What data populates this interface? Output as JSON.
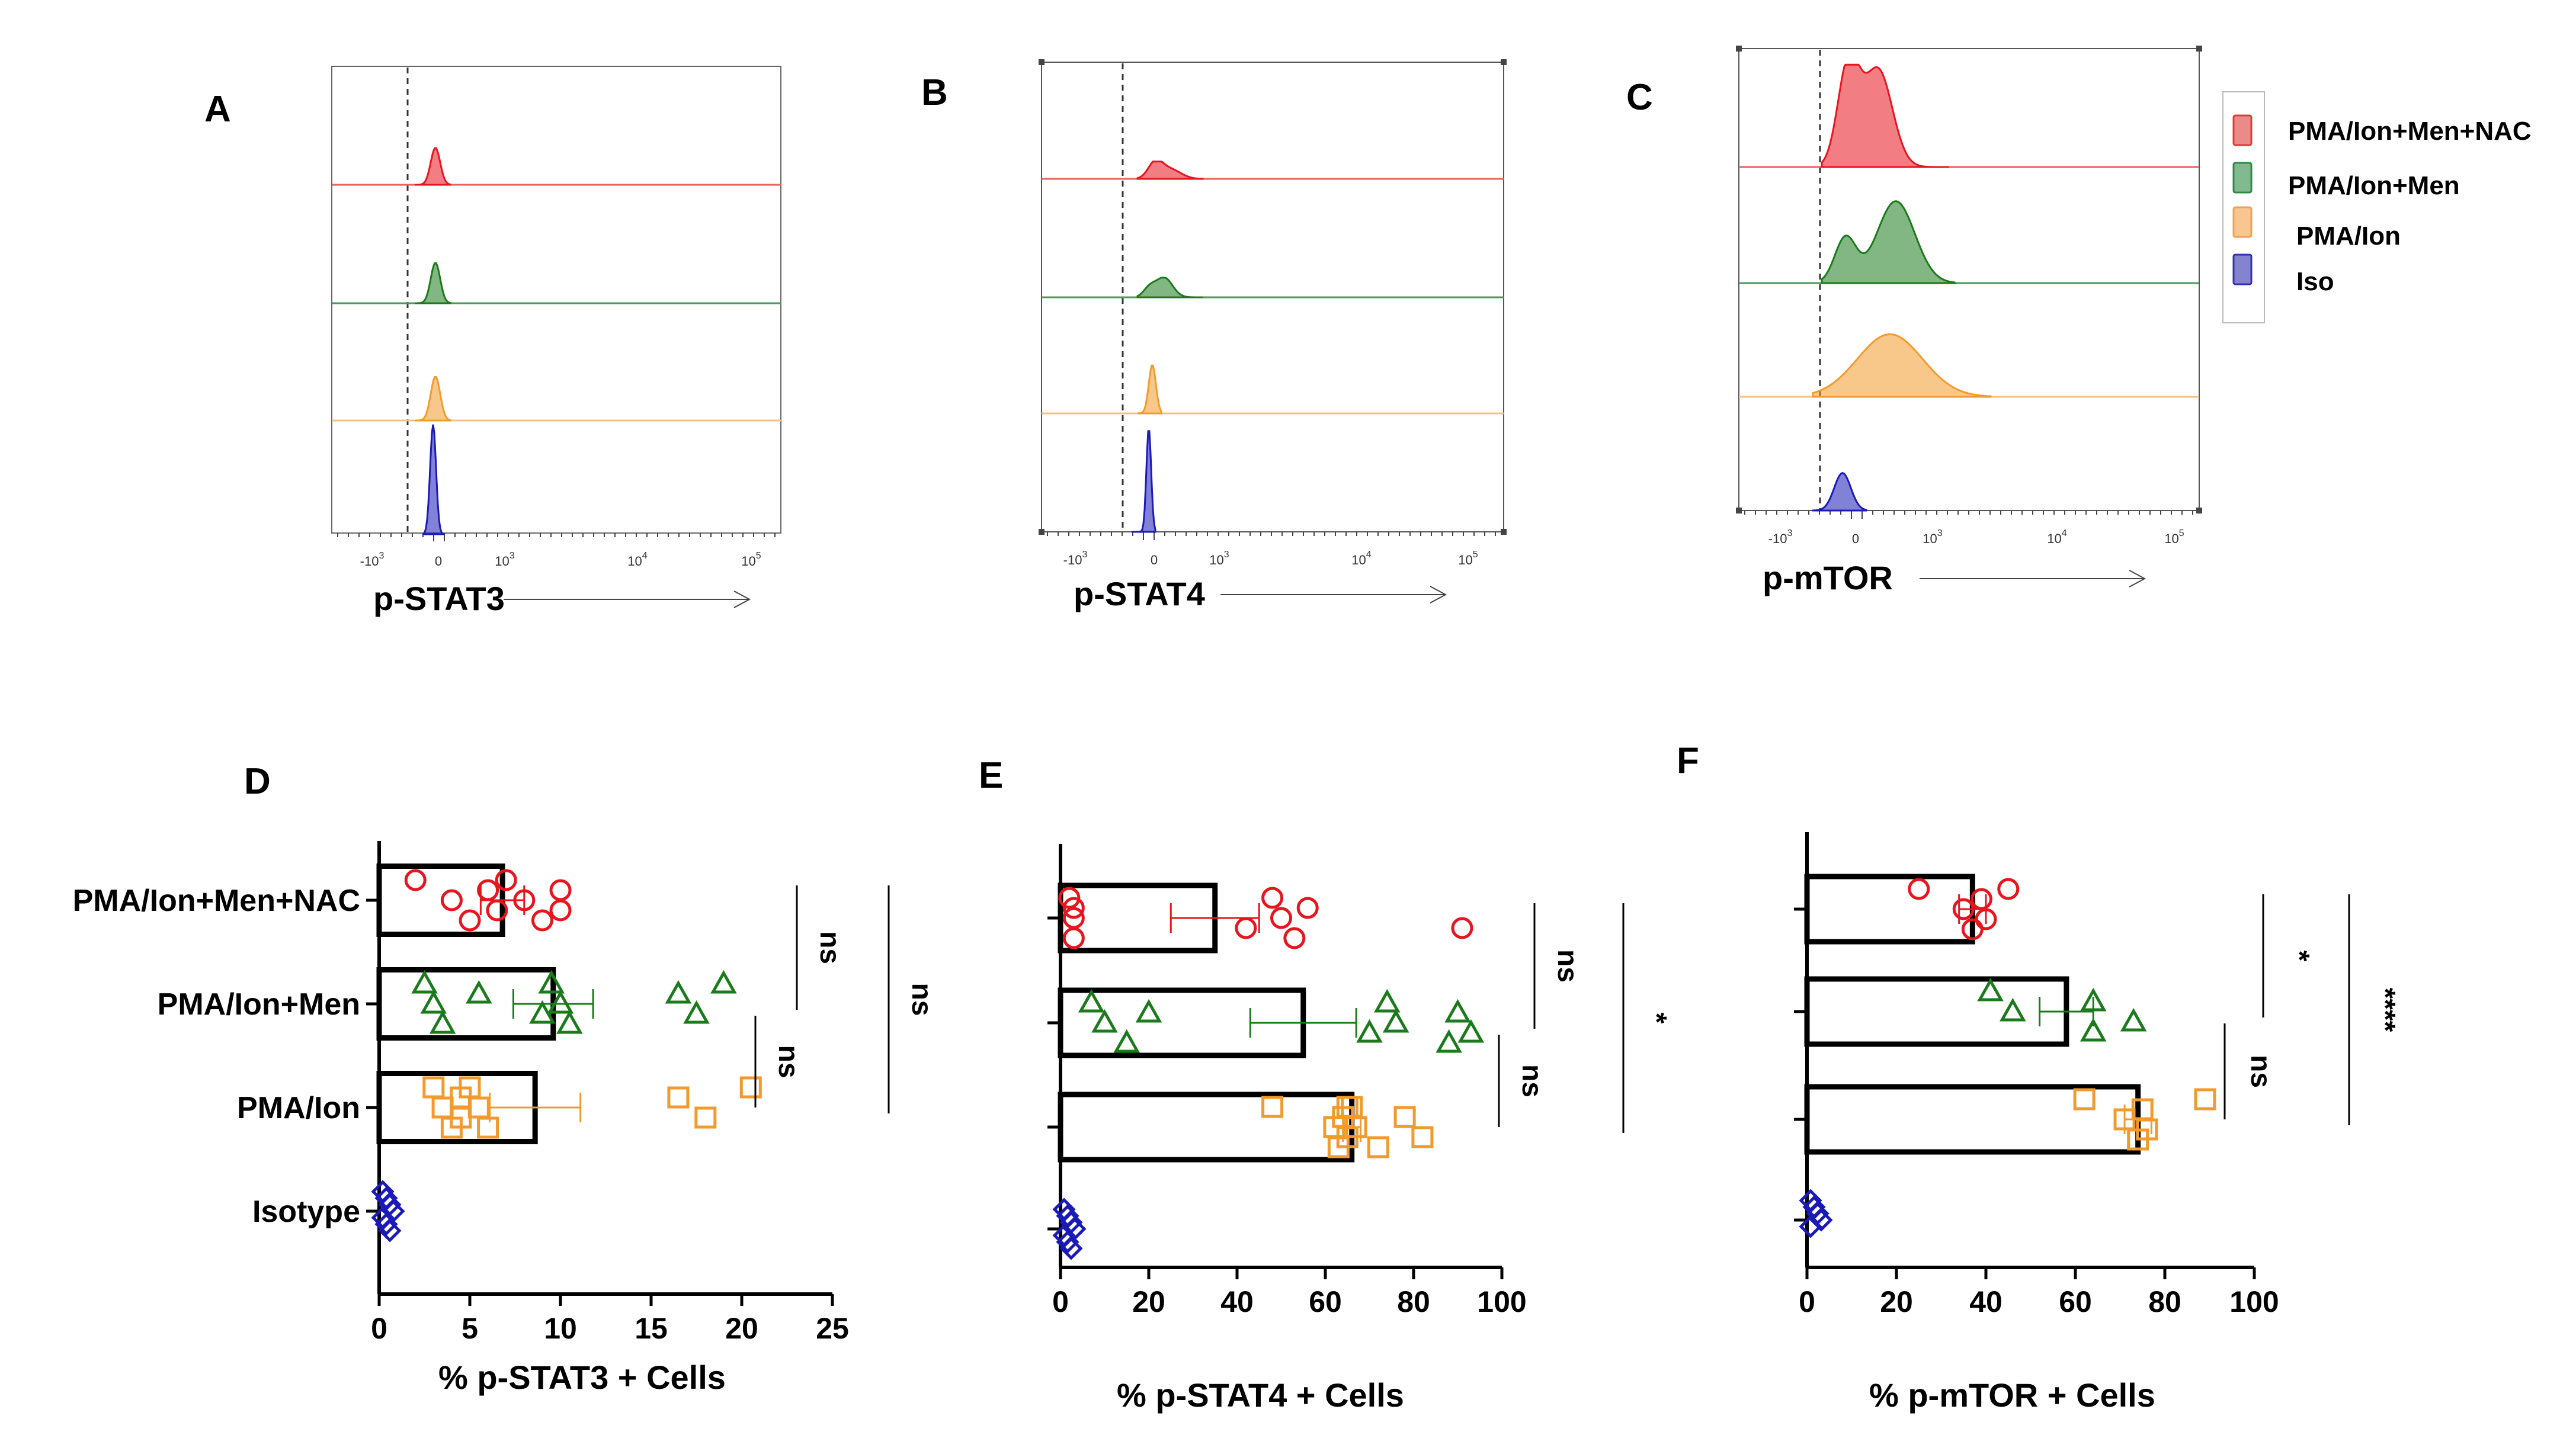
{
  "figure_letters": [
    "A",
    "B",
    "C",
    "D",
    "E",
    "F"
  ],
  "legend": [
    {
      "label": "PMA/Ion+Men+NAC",
      "color": "#e03a3a"
    },
    {
      "label": "PMA/Ion+Men",
      "color": "#2e8b45"
    },
    {
      "label": "PMA/Ion",
      "color": "#f5a04a"
    },
    {
      "label": "Iso",
      "color": "#3030b0"
    }
  ],
  "colors": {
    "nac": "#e8141e",
    "men": "#1b7a1b",
    "pma": "#f39a2c",
    "iso": "#1a1ab8"
  },
  "chart_data": [
    {
      "panel": "A",
      "type": "histogram",
      "xlabel": "p-STAT3",
      "x_tick_labels": [
        "-10^3",
        "0",
        "10^3",
        "10^4",
        "10^5"
      ],
      "series": [
        {
          "name": "PMA/Ion+Men+NAC",
          "peak_height": 0.32
        },
        {
          "name": "PMA/Ion+Men",
          "peak_height": 0.35
        },
        {
          "name": "PMA/Ion",
          "peak_height": 0.38
        },
        {
          "name": "Iso",
          "peak_height": 0.95
        }
      ]
    },
    {
      "panel": "B",
      "type": "histogram",
      "xlabel": "p-STAT4",
      "x_tick_labels": [
        "-10^3",
        "0",
        "10^3",
        "10^4",
        "10^5"
      ],
      "series": [
        {
          "name": "PMA/Ion+Men+NAC",
          "peak_height": 0.15
        },
        {
          "name": "PMA/Ion+Men",
          "peak_height": 0.17
        },
        {
          "name": "PMA/Ion",
          "peak_height": 0.42
        },
        {
          "name": "Iso",
          "peak_height": 0.9
        }
      ]
    },
    {
      "panel": "C",
      "type": "histogram",
      "xlabel": "p-mTOR",
      "x_tick_labels": [
        "-10^3",
        "0",
        "10^3",
        "10^4",
        "10^5"
      ],
      "series": [
        {
          "name": "PMA/Ion+Men+NAC",
          "peak_height": 0.9
        },
        {
          "name": "PMA/Ion+Men",
          "peak_height": 0.72
        },
        {
          "name": "PMA/Ion",
          "peak_height": 0.55
        },
        {
          "name": "Iso",
          "peak_height": 0.33
        }
      ]
    },
    {
      "panel": "D",
      "type": "bar",
      "orientation": "horizontal",
      "xlabel": "%  p-STAT3 + Cells",
      "categories": [
        "PMA/Ion+Men+NAC",
        "PMA/Ion+Men",
        "PMA/Ion",
        "Isotype"
      ],
      "show_category_labels": true,
      "xlim": [
        0,
        25
      ],
      "x_ticks": [
        0,
        5,
        10,
        15,
        20,
        25
      ],
      "means": [
        6.8,
        9.6,
        8.6,
        0
      ],
      "error": [
        1.2,
        2.2,
        2.5,
        0
      ],
      "points": [
        [
          2,
          4,
          5,
          6,
          6.5,
          7,
          8,
          9,
          10,
          10
        ],
        [
          2.5,
          3,
          3.5,
          5.5,
          9,
          9.5,
          10,
          10.5,
          16.5,
          17.5,
          19
        ],
        [
          3,
          3.5,
          4,
          4.5,
          4.5,
          5,
          5.5,
          6,
          16.5,
          18,
          20.5
        ],
        [
          0.3,
          0.5,
          0.7,
          0.9,
          1.0,
          0.6,
          0.4
        ]
      ],
      "significance": [
        {
          "label": "ns",
          "from": 0,
          "to": 1
        },
        {
          "label": "ns",
          "from": 0,
          "to": 2
        },
        {
          "label": "ns",
          "from": 1,
          "to": 2
        }
      ]
    },
    {
      "panel": "E",
      "type": "bar",
      "orientation": "horizontal",
      "xlabel": "%  p-STAT4 + Cells",
      "categories": [
        "PMA/Ion+Men+NAC",
        "PMA/Ion+Men",
        "PMA/Ion",
        "Isotype"
      ],
      "show_category_labels": false,
      "xlim": [
        0,
        100
      ],
      "x_ticks": [
        0,
        20,
        40,
        60,
        80,
        100
      ],
      "means": [
        35,
        55,
        66,
        0
      ],
      "error": [
        10,
        12,
        2,
        0
      ],
      "points": [
        [
          2,
          3,
          3,
          3,
          42,
          48,
          50,
          53,
          56,
          91
        ],
        [
          7,
          10,
          15,
          20,
          70,
          74,
          76,
          88,
          90,
          93
        ],
        [
          48,
          62,
          63,
          64,
          65,
          66,
          67,
          72,
          78,
          82,
          65
        ],
        [
          1,
          1.5,
          2,
          2.5,
          3,
          2,
          1.5
        ]
      ],
      "significance": [
        {
          "label": "ns",
          "from": 0,
          "to": 1
        },
        {
          "label": "*",
          "from": 0,
          "to": 2
        },
        {
          "label": "ns",
          "from": 1,
          "to": 2
        }
      ]
    },
    {
      "panel": "F",
      "type": "bar",
      "orientation": "horizontal",
      "xlabel": "% p-mTOR + Cells",
      "categories": [
        "PMA/Ion+Men+NAC",
        "PMA/Ion+Men",
        "PMA/Ion",
        "Isotype"
      ],
      "show_category_labels": false,
      "xlim": [
        0,
        100
      ],
      "x_ticks": [
        0,
        20,
        40,
        60,
        80,
        100
      ],
      "means": [
        37,
        58,
        74,
        0
      ],
      "error": [
        3,
        6,
        3,
        0
      ],
      "points": [
        [
          25,
          35,
          37,
          39,
          40,
          45
        ],
        [
          41,
          46,
          64,
          64,
          73
        ],
        [
          62,
          71,
          74,
          75,
          76,
          89
        ],
        [
          0.5,
          0.8,
          1.0,
          1.2,
          1.5
        ]
      ],
      "significance": [
        {
          "label": "*",
          "from": 0,
          "to": 1
        },
        {
          "label": "****",
          "from": 0,
          "to": 2
        },
        {
          "label": "ns",
          "from": 1,
          "to": 2
        }
      ]
    }
  ]
}
